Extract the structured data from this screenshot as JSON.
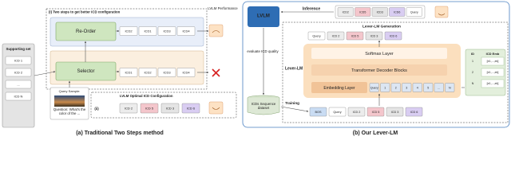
{
  "left": {
    "step_label": "(i) Two steps to get better ICD configuration",
    "performance_label": "LVLM Performance",
    "reorder": "Re-Order",
    "reorder_icds": [
      "ICD2",
      "ICD1",
      "ICD3",
      "ICD4"
    ],
    "supporting_set": {
      "title": "Supporting set",
      "items": [
        "ICD 1",
        "ICD 2",
        "...",
        "ICD N"
      ]
    },
    "selector": "Selector",
    "selector_icds": [
      "ICD1",
      "ICD2",
      "ICD3",
      "ICD4"
    ],
    "query_sample": "Query Sample:",
    "question": "Question: What's the color of the ...",
    "optimal_marker": "(ii)",
    "optimal_label": "LVLM Optimal ICD Configuration",
    "optimal_icds": [
      "ICD 2",
      "ICD 5",
      "ICD 3",
      "ICD 6"
    ],
    "caption": "(a) Traditional Two Steps method"
  },
  "right": {
    "lvlm": "LVLM",
    "inference": "Inference",
    "inference_icds": [
      "ICD2",
      "ICD5",
      "ICD3",
      "ICD6",
      "Query"
    ],
    "generation_label": "Lever-LM Generation",
    "generated": [
      "Query",
      "ICD 2",
      "ICD 5",
      "ICD 3",
      "ICD 6"
    ],
    "softmax": "Softmax Layer",
    "transformer": "Transformer Decoder Blocks",
    "embedding": "Embedding Layer",
    "embedding_tokens": [
      "Query",
      "1",
      "2",
      "3",
      "4",
      "5",
      "...",
      "N"
    ],
    "lever_lm": "Lever-LM",
    "evaluate": "evaluate ICD quality",
    "training": "Training",
    "dataset": "ICDs Sequence dataset",
    "training_tokens": [
      "BOS",
      "Query",
      "ICD 2",
      "ICD 5",
      "ICD 3",
      "ICD 6"
    ],
    "emb_table": {
      "header": [
        "ID",
        "ICD Emb"
      ],
      "rows": [
        [
          "1",
          "[e1,...,ek]"
        ],
        [
          "2",
          "[e1,...,ek]"
        ],
        [
          "N",
          "[e1,...,ek]"
        ]
      ]
    },
    "caption": "(b) Our Lever-LM"
  }
}
